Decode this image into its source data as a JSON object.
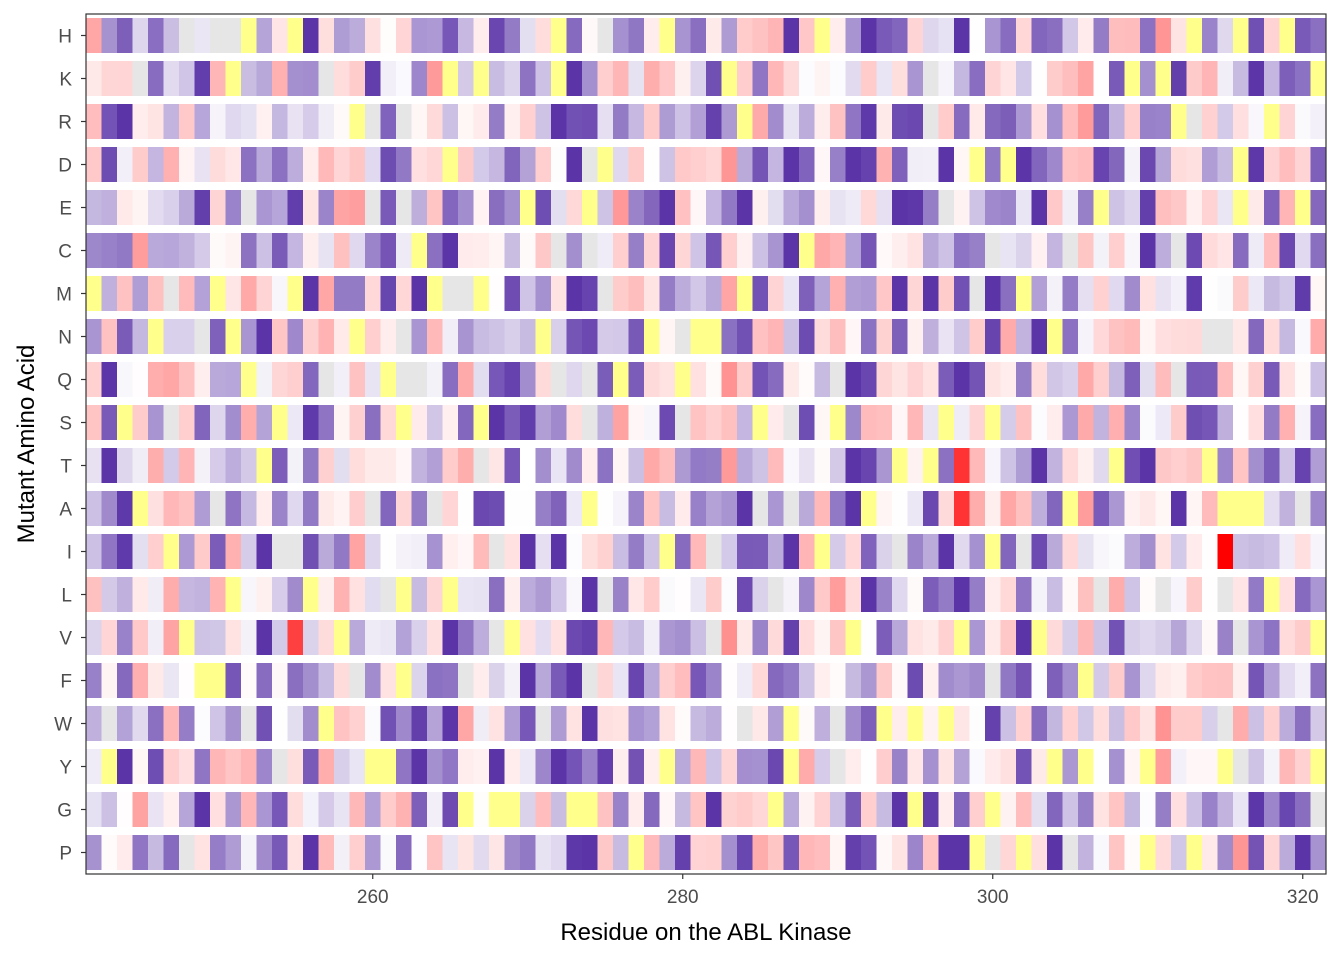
{
  "chart_data": {
    "type": "heatmap",
    "title": "",
    "xlabel": "Residue on the ABL Kinase",
    "ylabel": "Mutant Amino Acid",
    "x_range": [
      242,
      321
    ],
    "xlim": [
      241.5,
      321.5
    ],
    "x_ticks": [
      260,
      280,
      300,
      320
    ],
    "y_categories": [
      "H",
      "K",
      "R",
      "D",
      "E",
      "C",
      "M",
      "N",
      "Q",
      "S",
      "T",
      "A",
      "I",
      "L",
      "V",
      "F",
      "W",
      "Y",
      "G",
      "P"
    ],
    "grid": false,
    "legend": "none",
    "colors": {
      "low": "#5b35a8",
      "mid": "#ffffff",
      "high": "#ff0000",
      "wildtype": "#ffff8c",
      "missing": "#e6e6e6",
      "border": "#333333",
      "tick_text": "#4d4d4d"
    },
    "value_range": [
      -1,
      2
    ],
    "notes_hotspots": [
      {
        "residue": 315,
        "aa": "I",
        "value": 2.0
      },
      {
        "residue": 298,
        "aa": "T",
        "value": 1.6
      },
      {
        "residue": 298,
        "aa": "A",
        "value": 1.6
      },
      {
        "residue": 255,
        "aa": "V",
        "value": 1.5
      }
    ]
  }
}
